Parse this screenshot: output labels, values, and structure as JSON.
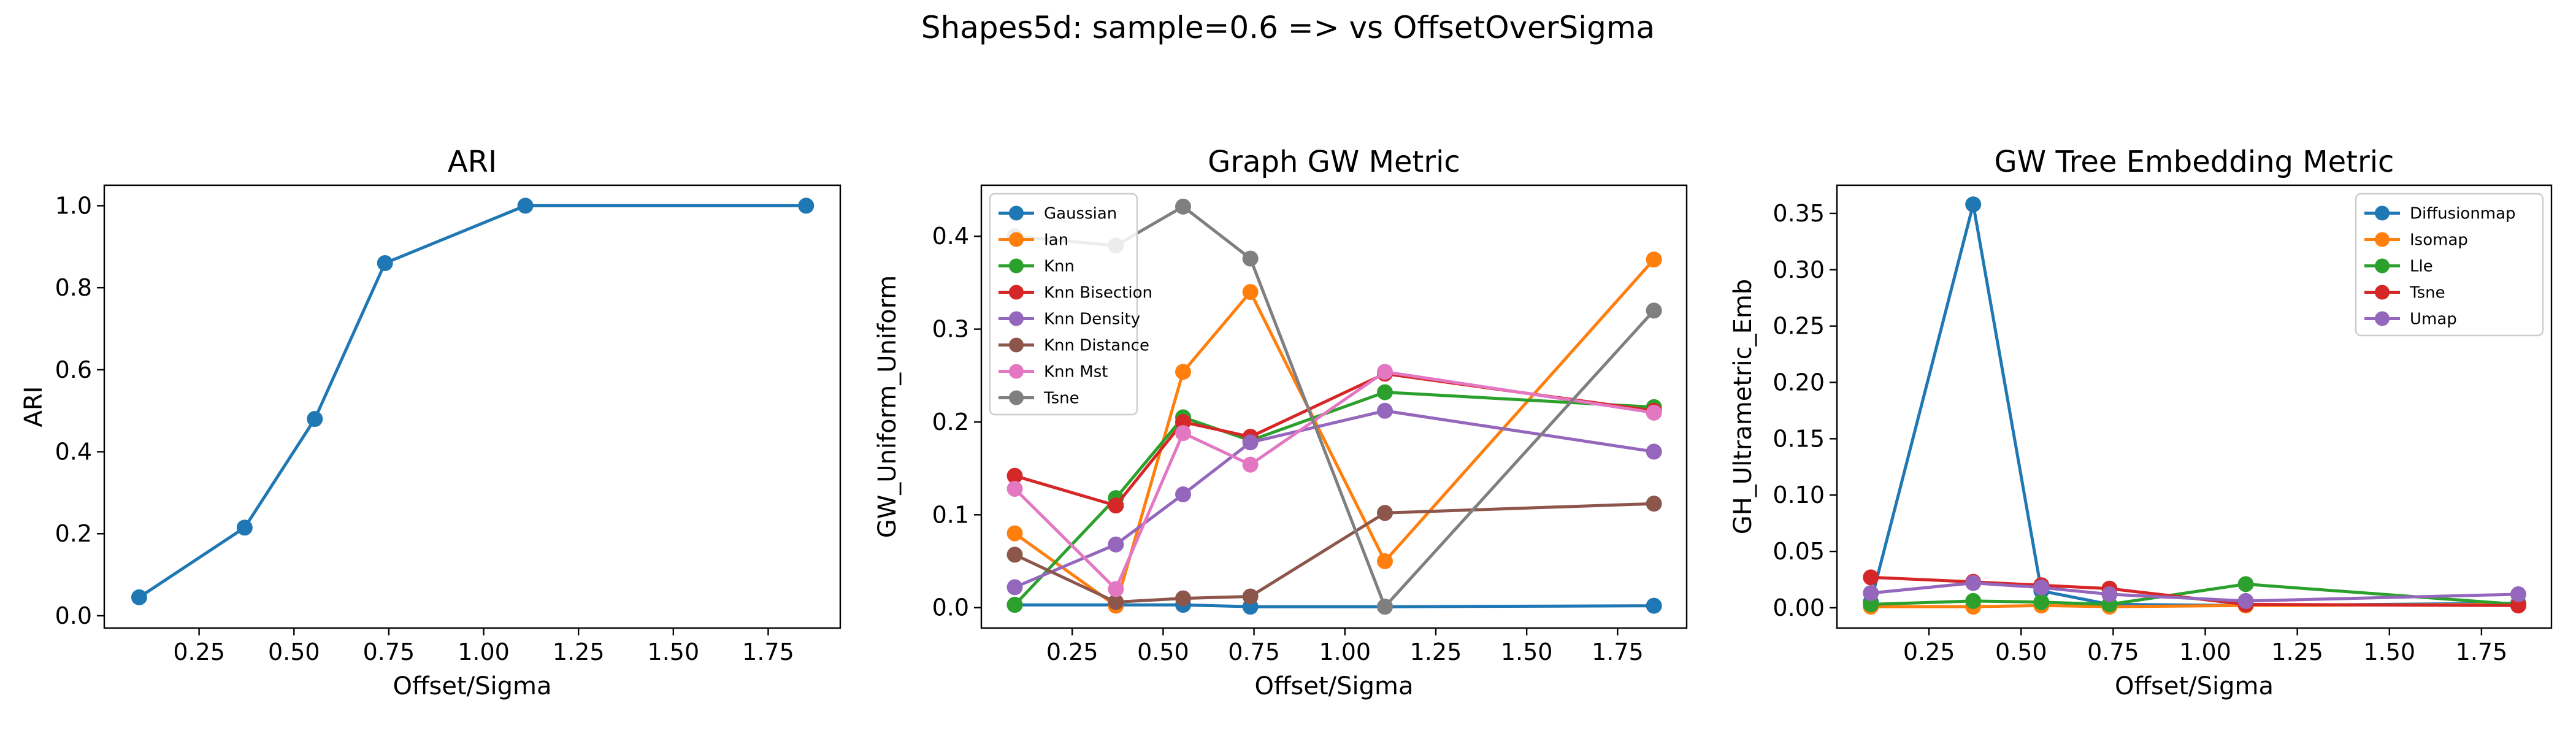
{
  "figure": {
    "suptitle": "Shapes5d: sample=0.6 => vs OffsetOverSigma"
  },
  "colors": {
    "blue": "#1f77b4",
    "orange": "#ff7f0e",
    "green": "#2ca02c",
    "red": "#d62728",
    "purple": "#9467bd",
    "brown": "#8c564b",
    "pink": "#e377c2",
    "gray": "#7f7f7f"
  },
  "chart_data": [
    {
      "type": "line",
      "title": "ARI",
      "xlabel": "Offset/Sigma",
      "ylabel": "ARI",
      "x": [
        0.092,
        0.37,
        0.555,
        0.74,
        1.11,
        1.85
      ],
      "xlim": [
        0.0,
        1.94
      ],
      "ylim": [
        -0.03,
        1.05
      ],
      "xticks": [
        "0.25",
        "0.50",
        "0.75",
        "1.00",
        "1.25",
        "1.50",
        "1.75"
      ],
      "xtick_values": [
        0.25,
        0.5,
        0.75,
        1.0,
        1.25,
        1.5,
        1.75
      ],
      "yticks": [
        "0.0",
        "0.2",
        "0.4",
        "0.6",
        "0.8",
        "1.0"
      ],
      "ytick_values": [
        0.0,
        0.2,
        0.4,
        0.6,
        0.8,
        1.0
      ],
      "legend": "none",
      "series": [
        {
          "name": "",
          "color": "#1f77b4",
          "values": [
            0.045,
            0.215,
            0.48,
            0.86,
            1.0,
            1.0
          ]
        }
      ]
    },
    {
      "type": "line",
      "title": "Graph GW Metric",
      "xlabel": "Offset/Sigma",
      "ylabel": "GW_Uniform_Uniform",
      "x": [
        0.092,
        0.37,
        0.555,
        0.74,
        1.11,
        1.85
      ],
      "xlim": [
        0.0,
        1.94
      ],
      "ylim": [
        -0.022,
        0.455
      ],
      "xticks": [
        "0.25",
        "0.50",
        "0.75",
        "1.00",
        "1.25",
        "1.50",
        "1.75"
      ],
      "xtick_values": [
        0.25,
        0.5,
        0.75,
        1.0,
        1.25,
        1.5,
        1.75
      ],
      "yticks": [
        "0.0",
        "0.1",
        "0.2",
        "0.3",
        "0.4"
      ],
      "ytick_values": [
        0.0,
        0.1,
        0.2,
        0.3,
        0.4
      ],
      "legend": "top-left",
      "series": [
        {
          "name": "Gaussian",
          "color": "#1f77b4",
          "values": [
            0.003,
            0.003,
            0.003,
            0.001,
            0.001,
            0.002
          ]
        },
        {
          "name": "Ian",
          "color": "#ff7f0e",
          "values": [
            0.08,
            0.002,
            0.254,
            0.34,
            0.05,
            0.375
          ]
        },
        {
          "name": "Knn",
          "color": "#2ca02c",
          "values": [
            0.003,
            0.118,
            0.205,
            0.18,
            0.232,
            0.216
          ]
        },
        {
          "name": "Knn Bisection",
          "color": "#d62728",
          "values": [
            0.142,
            0.11,
            0.2,
            0.184,
            0.252,
            0.212
          ]
        },
        {
          "name": "Knn Density",
          "color": "#9467bd",
          "values": [
            0.022,
            0.068,
            0.122,
            0.178,
            0.212,
            0.168
          ]
        },
        {
          "name": "Knn Distance",
          "color": "#8c564b",
          "values": [
            0.057,
            0.006,
            0.01,
            0.012,
            0.102,
            0.112
          ]
        },
        {
          "name": "Knn Mst",
          "color": "#e377c2",
          "values": [
            0.128,
            0.02,
            0.188,
            0.154,
            0.254,
            0.21
          ]
        },
        {
          "name": "Tsne",
          "color": "#7f7f7f",
          "values": [
            0.4,
            0.39,
            0.432,
            0.376,
            0.001,
            0.32
          ]
        }
      ]
    },
    {
      "type": "line",
      "title": "GW Tree Embedding Metric",
      "xlabel": "Offset/Sigma",
      "ylabel": "GH_Ultrametric_Emb",
      "x": [
        0.092,
        0.37,
        0.555,
        0.74,
        1.11,
        1.85
      ],
      "xlim": [
        0.0,
        1.94
      ],
      "ylim": [
        -0.018,
        0.375
      ],
      "xticks": [
        "0.25",
        "0.50",
        "0.75",
        "1.00",
        "1.25",
        "1.50",
        "1.75"
      ],
      "xtick_values": [
        0.25,
        0.5,
        0.75,
        1.0,
        1.25,
        1.5,
        1.75
      ],
      "yticks": [
        "0.00",
        "0.05",
        "0.10",
        "0.15",
        "0.20",
        "0.25",
        "0.30",
        "0.35"
      ],
      "ytick_values": [
        0.0,
        0.05,
        0.1,
        0.15,
        0.2,
        0.25,
        0.3,
        0.35
      ],
      "legend": "top-right",
      "series": [
        {
          "name": "Diffusionmap",
          "color": "#1f77b4",
          "values": [
            0.005,
            0.358,
            0.015,
            0.003,
            0.002,
            0.004
          ]
        },
        {
          "name": "Isomap",
          "color": "#ff7f0e",
          "values": [
            0.001,
            0.001,
            0.002,
            0.001,
            0.002,
            0.003
          ]
        },
        {
          "name": "Lle",
          "color": "#2ca02c",
          "values": [
            0.003,
            0.006,
            0.005,
            0.003,
            0.021,
            0.003
          ]
        },
        {
          "name": "Tsne",
          "color": "#d62728",
          "values": [
            0.027,
            0.023,
            0.02,
            0.017,
            0.003,
            0.002
          ]
        },
        {
          "name": "Umap",
          "color": "#9467bd",
          "values": [
            0.013,
            0.022,
            0.018,
            0.012,
            0.006,
            0.012
          ]
        }
      ]
    }
  ]
}
